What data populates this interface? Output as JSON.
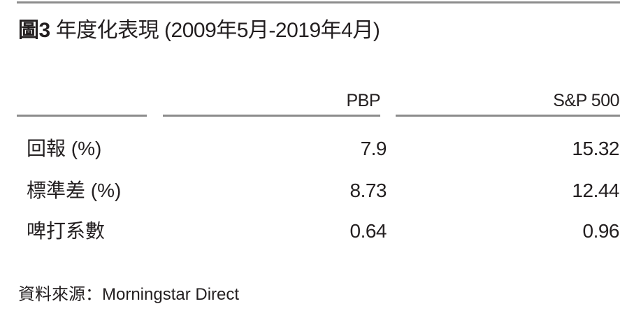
{
  "title": {
    "figure_label": "圖3",
    "text": "年度化表現 (2009年5月-2019年4月)"
  },
  "table": {
    "columns": [
      "PBP",
      "S&P 500"
    ],
    "rows": [
      {
        "label": "回報 (%)",
        "pbp": "7.9",
        "sp500": "15.32"
      },
      {
        "label": "標準差 (%)",
        "pbp": "8.73",
        "sp500": "12.44"
      },
      {
        "label": "啤打系數",
        "pbp": "0.64",
        "sp500": "0.96"
      }
    ]
  },
  "source": "資料來源：Morningstar Direct",
  "colors": {
    "text": "#231f20",
    "rule": "#8c8c8c",
    "background": "#ffffff"
  }
}
